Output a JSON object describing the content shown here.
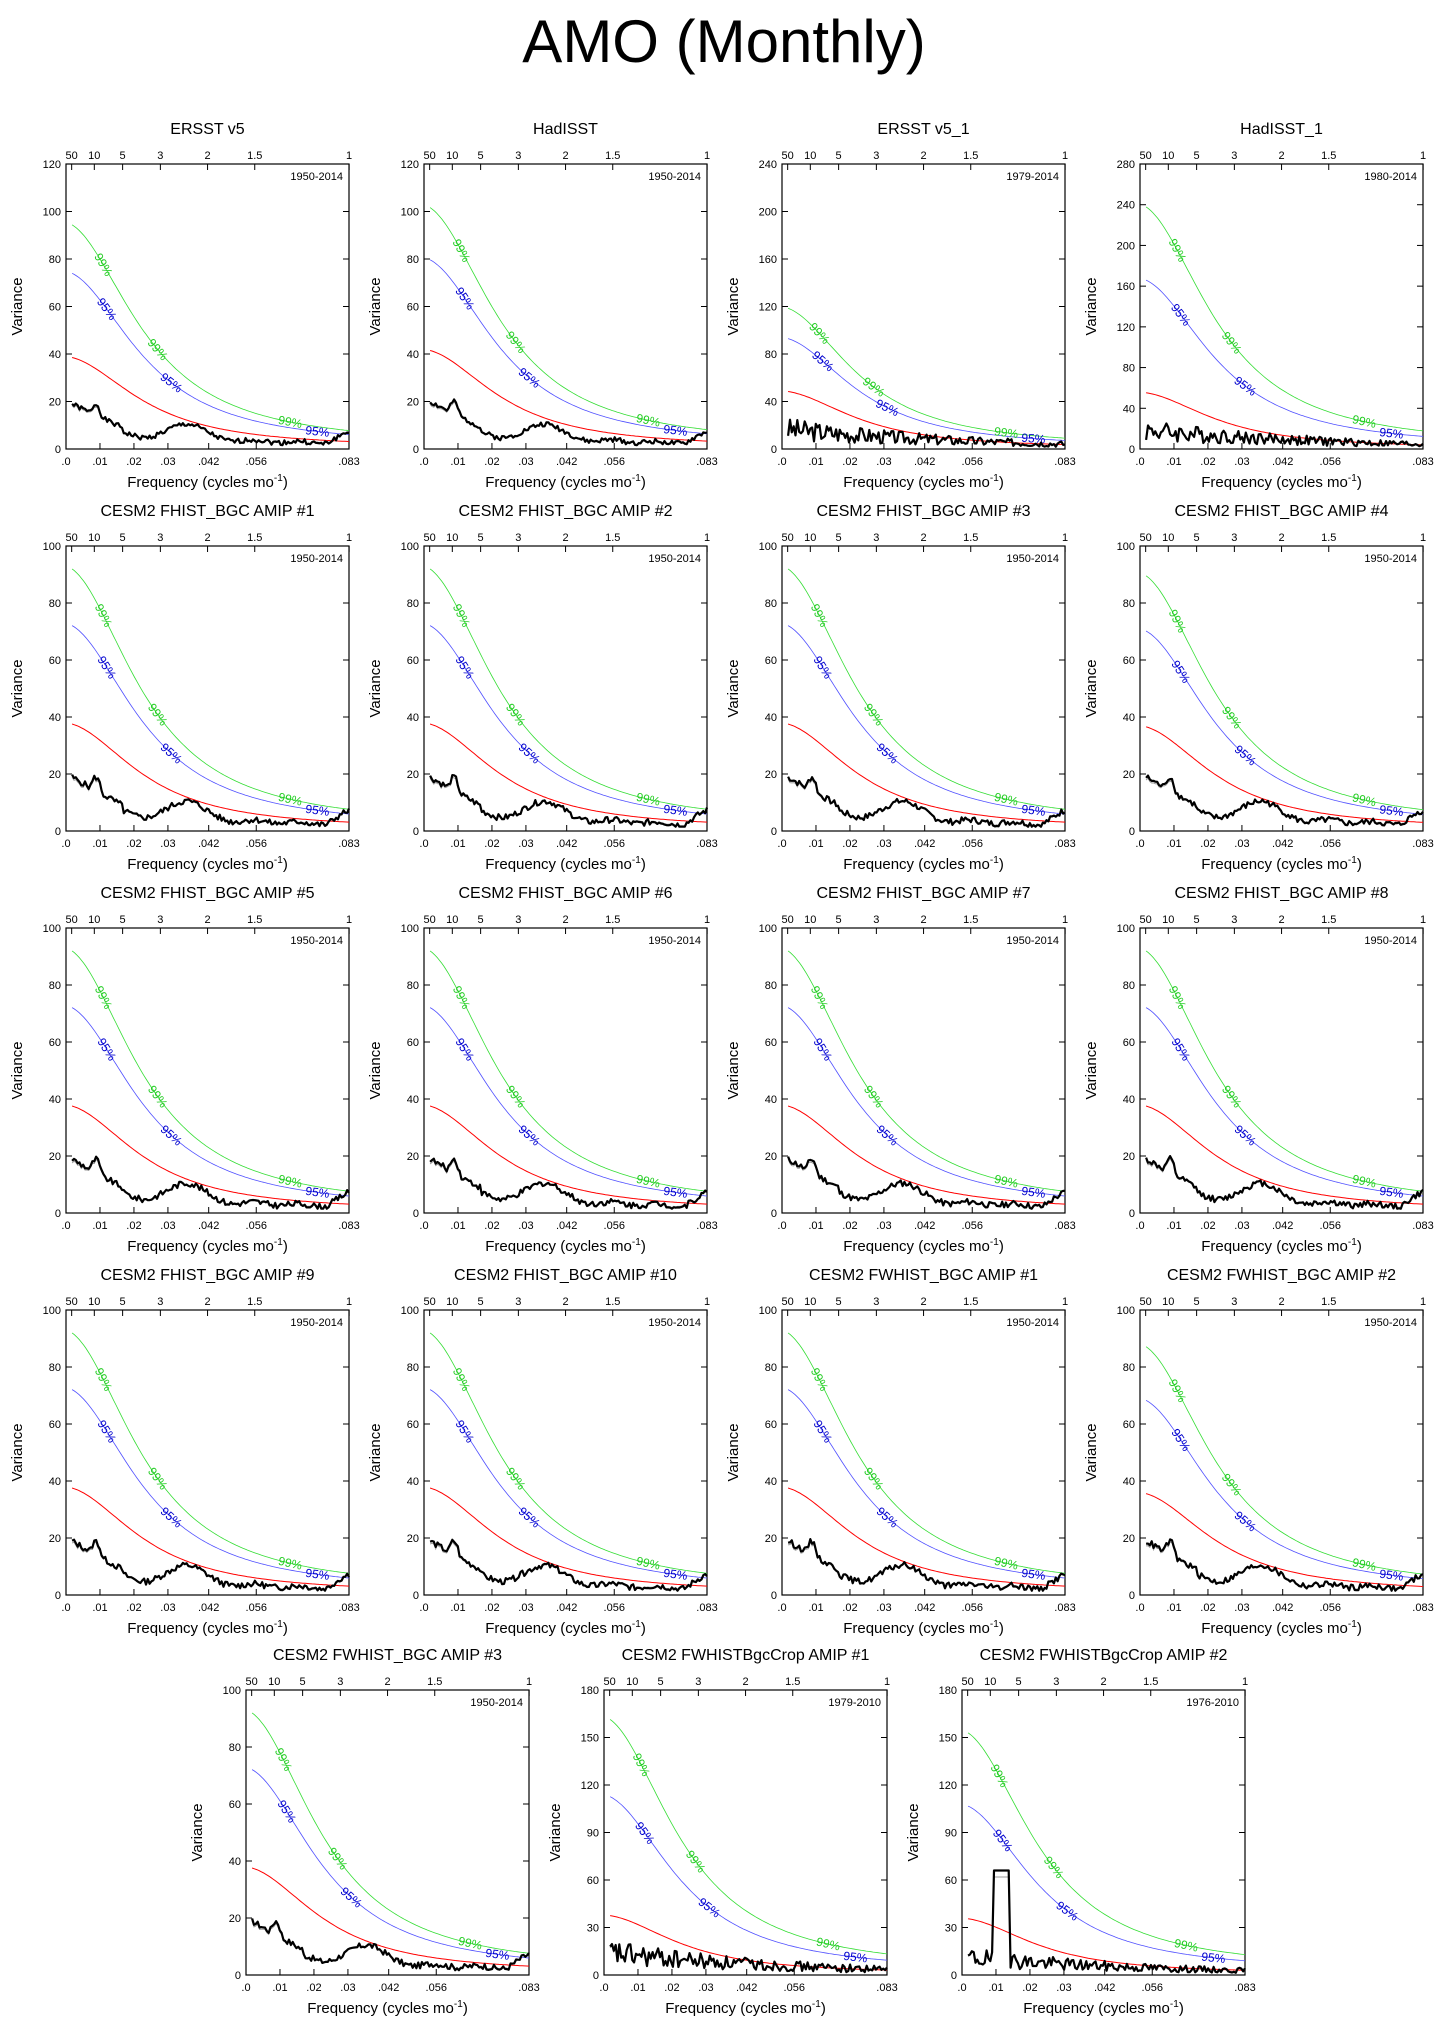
{
  "page_title": "AMO (Monthly)",
  "colors": {
    "spectrum": "#000000",
    "spectrum_thin": "#999999",
    "red_noise": "#ff0000",
    "conf95": "#5050ff",
    "conf95_label": "#0000cc",
    "conf99": "#33dd33",
    "conf99_label": "#22cc22",
    "axis": "#000000"
  },
  "chart_data": [
    {
      "type": "line",
      "title": "ERSST v5",
      "years": "1950-2014",
      "ylim": [
        0,
        120
      ],
      "yticks": [
        "0",
        "20",
        "40",
        "60",
        "80",
        "100",
        "120"
      ],
      "xlabel": "Frequency (cycles mo",
      "xlabel_sup": "-1",
      "ylabel": "Variance",
      "top_ticks": [
        "50",
        "10",
        "5",
        "3",
        "2",
        "1.5",
        "1"
      ],
      "xticks": [
        ".0",
        ".01",
        ".02",
        ".03",
        ".042",
        ".056",
        ".083"
      ],
      "conf_labels": {
        "c99": "99%",
        "c95": "95%"
      },
      "red0": 38,
      "peak": 106,
      "base": 16,
      "curve": "a",
      "seed": 1
    },
    {
      "type": "line",
      "title": "HadISST",
      "years": "1950-2014",
      "ylim": [
        0,
        120
      ],
      "yticks": [
        "0",
        "20",
        "40",
        "60",
        "80",
        "100",
        "120"
      ],
      "xlabel": "Frequency (cycles mo",
      "xlabel_sup": "-1",
      "ylabel": "Variance",
      "top_ticks": [
        "50",
        "10",
        "5",
        "3",
        "2",
        "1.5",
        "1"
      ],
      "xticks": [
        ".0",
        ".01",
        ".02",
        ".03",
        ".042",
        ".056",
        ".083"
      ],
      "conf_labels": {
        "c99": "99%",
        "c95": "95%"
      },
      "red0": 41,
      "peak": 117,
      "base": 17,
      "curve": "a",
      "seed": 2
    },
    {
      "type": "line",
      "title": "ERSST v5_1",
      "years": "1979-2014",
      "ylim": [
        0,
        240
      ],
      "yticks": [
        "0",
        "40",
        "80",
        "120",
        "160",
        "200",
        "240"
      ],
      "xlabel": "Frequency (cycles mo",
      "xlabel_sup": "-1",
      "ylabel": "Variance",
      "top_ticks": [
        "50",
        "10",
        "5",
        "3",
        "2",
        "1.5",
        "1"
      ],
      "xticks": [
        ".0",
        ".01",
        ".02",
        ".03",
        ".042",
        ".056",
        ".083"
      ],
      "conf_labels": {
        "c99": "99%",
        "c95": "95%"
      },
      "red0": 48,
      "peak": 107,
      "base": 18,
      "curve": "b",
      "seed": 3
    },
    {
      "type": "line",
      "title": "HadISST_1",
      "years": "1980-2014",
      "ylim": [
        0,
        280
      ],
      "yticks": [
        "0",
        "40",
        "80",
        "120",
        "160",
        "200",
        "240",
        "280"
      ],
      "xlabel": "Frequency (cycles mo",
      "xlabel_sup": "-1",
      "ylabel": "Variance",
      "top_ticks": [
        "50",
        "10",
        "5",
        "3",
        "2",
        "1.5",
        "1"
      ],
      "xticks": [
        ".0",
        ".01",
        ".02",
        ".03",
        ".042",
        ".056",
        ".083"
      ],
      "conf_labels": {
        "c99": "99%",
        "c95": "95%"
      },
      "red0": 55,
      "peak": 265,
      "base": 20,
      "curve": "b",
      "seed": 4
    },
    {
      "type": "line",
      "title": "CESM2 FHIST_BGC AMIP #1",
      "years": "1950-2014",
      "ylim": [
        0,
        100
      ],
      "yticks": [
        "0",
        "20",
        "40",
        "60",
        "80",
        "100"
      ],
      "xlabel": "Frequency (cycles mo",
      "xlabel_sup": "-1",
      "ylabel": "Variance",
      "top_ticks": [
        "50",
        "10",
        "5",
        "3",
        "2",
        "1.5",
        "1"
      ],
      "xticks": [
        ".0",
        ".01",
        ".02",
        ".03",
        ".042",
        ".056",
        ".083"
      ],
      "conf_labels": {
        "c99": "99%",
        "c95": "95%"
      },
      "red0": 37,
      "peak": 97,
      "base": 16,
      "curve": "a",
      "seed": 5
    },
    {
      "type": "line",
      "title": "CESM2 FHIST_BGC AMIP #2",
      "years": "1950-2014",
      "ylim": [
        0,
        100
      ],
      "yticks": [
        "0",
        "20",
        "40",
        "60",
        "80",
        "100"
      ],
      "xlabel": "Frequency (cycles mo",
      "xlabel_sup": "-1",
      "ylabel": "Variance",
      "top_ticks": [
        "50",
        "10",
        "5",
        "3",
        "2",
        "1.5",
        "1"
      ],
      "xticks": [
        ".0",
        ".01",
        ".02",
        ".03",
        ".042",
        ".056",
        ".083"
      ],
      "conf_labels": {
        "c99": "99%",
        "c95": "95%"
      },
      "red0": 37,
      "peak": 97,
      "base": 16,
      "curve": "a",
      "seed": 6
    },
    {
      "type": "line",
      "title": "CESM2 FHIST_BGC AMIP #3",
      "years": "1950-2014",
      "ylim": [
        0,
        100
      ],
      "yticks": [
        "0",
        "20",
        "40",
        "60",
        "80",
        "100"
      ],
      "xlabel": "Frequency (cycles mo",
      "xlabel_sup": "-1",
      "ylabel": "Variance",
      "top_ticks": [
        "50",
        "10",
        "5",
        "3",
        "2",
        "1.5",
        "1"
      ],
      "xticks": [
        ".0",
        ".01",
        ".02",
        ".03",
        ".042",
        ".056",
        ".083"
      ],
      "conf_labels": {
        "c99": "99%",
        "c95": "95%"
      },
      "red0": 37,
      "peak": 97,
      "base": 16,
      "curve": "a",
      "seed": 7
    },
    {
      "type": "line",
      "title": "CESM2 FHIST_BGC AMIP #4",
      "years": "1950-2014",
      "ylim": [
        0,
        100
      ],
      "yticks": [
        "0",
        "20",
        "40",
        "60",
        "80",
        "100"
      ],
      "xlabel": "Frequency (cycles mo",
      "xlabel_sup": "-1",
      "ylabel": "Variance",
      "top_ticks": [
        "50",
        "10",
        "5",
        "3",
        "2",
        "1.5",
        "1"
      ],
      "xticks": [
        ".0",
        ".01",
        ".02",
        ".03",
        ".042",
        ".056",
        ".083"
      ],
      "conf_labels": {
        "c99": "99%",
        "c95": "95%"
      },
      "red0": 36,
      "peak": 98,
      "base": 16,
      "curve": "a",
      "seed": 8
    },
    {
      "type": "line",
      "title": "CESM2 FHIST_BGC AMIP #5",
      "years": "1950-2014",
      "ylim": [
        0,
        100
      ],
      "yticks": [
        "0",
        "20",
        "40",
        "60",
        "80",
        "100"
      ],
      "xlabel": "Frequency (cycles mo",
      "xlabel_sup": "-1",
      "ylabel": "Variance",
      "top_ticks": [
        "50",
        "10",
        "5",
        "3",
        "2",
        "1.5",
        "1"
      ],
      "xticks": [
        ".0",
        ".01",
        ".02",
        ".03",
        ".042",
        ".056",
        ".083"
      ],
      "conf_labels": {
        "c99": "99%",
        "c95": "95%"
      },
      "red0": 37,
      "peak": 97,
      "base": 16,
      "curve": "a",
      "seed": 9
    },
    {
      "type": "line",
      "title": "CESM2 FHIST_BGC AMIP #6",
      "years": "1950-2014",
      "ylim": [
        0,
        100
      ],
      "yticks": [
        "0",
        "20",
        "40",
        "60",
        "80",
        "100"
      ],
      "xlabel": "Frequency (cycles mo",
      "xlabel_sup": "-1",
      "ylabel": "Variance",
      "top_ticks": [
        "50",
        "10",
        "5",
        "3",
        "2",
        "1.5",
        "1"
      ],
      "xticks": [
        ".0",
        ".01",
        ".02",
        ".03",
        ".042",
        ".056",
        ".083"
      ],
      "conf_labels": {
        "c99": "99%",
        "c95": "95%"
      },
      "red0": 37,
      "peak": 97,
      "base": 16,
      "curve": "a",
      "seed": 10
    },
    {
      "type": "line",
      "title": "CESM2 FHIST_BGC AMIP #7",
      "years": "1950-2014",
      "ylim": [
        0,
        100
      ],
      "yticks": [
        "0",
        "20",
        "40",
        "60",
        "80",
        "100"
      ],
      "xlabel": "Frequency (cycles mo",
      "xlabel_sup": "-1",
      "ylabel": "Variance",
      "top_ticks": [
        "50",
        "10",
        "5",
        "3",
        "2",
        "1.5",
        "1"
      ],
      "xticks": [
        ".0",
        ".01",
        ".02",
        ".03",
        ".042",
        ".056",
        ".083"
      ],
      "conf_labels": {
        "c99": "99%",
        "c95": "95%"
      },
      "red0": 37,
      "peak": 98,
      "base": 16,
      "curve": "a",
      "seed": 11
    },
    {
      "type": "line",
      "title": "CESM2 FHIST_BGC AMIP #8",
      "years": "1950-2014",
      "ylim": [
        0,
        100
      ],
      "yticks": [
        "0",
        "20",
        "40",
        "60",
        "80",
        "100"
      ],
      "xlabel": "Frequency (cycles mo",
      "xlabel_sup": "-1",
      "ylabel": "Variance",
      "top_ticks": [
        "50",
        "10",
        "5",
        "3",
        "2",
        "1.5",
        "1"
      ],
      "xticks": [
        ".0",
        ".01",
        ".02",
        ".03",
        ".042",
        ".056",
        ".083"
      ],
      "conf_labels": {
        "c99": "99%",
        "c95": "95%"
      },
      "red0": 37,
      "peak": 98,
      "base": 16,
      "curve": "a",
      "seed": 12
    },
    {
      "type": "line",
      "title": "CESM2 FHIST_BGC AMIP #9",
      "years": "1950-2014",
      "ylim": [
        0,
        100
      ],
      "yticks": [
        "0",
        "20",
        "40",
        "60",
        "80",
        "100"
      ],
      "xlabel": "Frequency (cycles mo",
      "xlabel_sup": "-1",
      "ylabel": "Variance",
      "top_ticks": [
        "50",
        "10",
        "5",
        "3",
        "2",
        "1.5",
        "1"
      ],
      "xticks": [
        ".0",
        ".01",
        ".02",
        ".03",
        ".042",
        ".056",
        ".083"
      ],
      "conf_labels": {
        "c99": "99%",
        "c95": "95%"
      },
      "red0": 37,
      "peak": 98,
      "base": 16,
      "curve": "a",
      "seed": 13
    },
    {
      "type": "line",
      "title": "CESM2 FHIST_BGC AMIP #10",
      "years": "1950-2014",
      "ylim": [
        0,
        100
      ],
      "yticks": [
        "0",
        "20",
        "40",
        "60",
        "80",
        "100"
      ],
      "xlabel": "Frequency (cycles mo",
      "xlabel_sup": "-1",
      "ylabel": "Variance",
      "top_ticks": [
        "50",
        "10",
        "5",
        "3",
        "2",
        "1.5",
        "1"
      ],
      "xticks": [
        ".0",
        ".01",
        ".02",
        ".03",
        ".042",
        ".056",
        ".083"
      ],
      "conf_labels": {
        "c99": "99%",
        "c95": "95%"
      },
      "red0": 37,
      "peak": 97,
      "base": 16,
      "curve": "a",
      "seed": 14
    },
    {
      "type": "line",
      "title": "CESM2 FWHIST_BGC AMIP #1",
      "years": "1950-2014",
      "ylim": [
        0,
        100
      ],
      "yticks": [
        "0",
        "20",
        "40",
        "60",
        "80",
        "100"
      ],
      "xlabel": "Frequency (cycles mo",
      "xlabel_sup": "-1",
      "ylabel": "Variance",
      "top_ticks": [
        "50",
        "10",
        "5",
        "3",
        "2",
        "1.5",
        "1"
      ],
      "xticks": [
        ".0",
        ".01",
        ".02",
        ".03",
        ".042",
        ".056",
        ".083"
      ],
      "conf_labels": {
        "c99": "99%",
        "c95": "95%"
      },
      "red0": 37,
      "peak": 98,
      "base": 16,
      "curve": "a",
      "seed": 15
    },
    {
      "type": "line",
      "title": "CESM2 FWHIST_BGC AMIP #2",
      "years": "1950-2014",
      "ylim": [
        0,
        100
      ],
      "yticks": [
        "0",
        "20",
        "40",
        "60",
        "80",
        "100"
      ],
      "xlabel": "Frequency (cycles mo",
      "xlabel_sup": "-1",
      "ylabel": "Variance",
      "top_ticks": [
        "50",
        "10",
        "5",
        "3",
        "2",
        "1.5",
        "1"
      ],
      "xticks": [
        ".0",
        ".01",
        ".02",
        ".03",
        ".042",
        ".056",
        ".083"
      ],
      "conf_labels": {
        "c99": "99%",
        "c95": "95%"
      },
      "red0": 35,
      "peak": 98,
      "base": 16,
      "curve": "a",
      "seed": 16
    },
    {
      "type": "line",
      "title": "CESM2 FWHIST_BGC AMIP #3",
      "years": "1950-2014",
      "ylim": [
        0,
        100
      ],
      "yticks": [
        "0",
        "20",
        "40",
        "60",
        "80",
        "100"
      ],
      "xlabel": "Frequency (cycles mo",
      "xlabel_sup": "-1",
      "ylabel": "Variance",
      "top_ticks": [
        "50",
        "10",
        "5",
        "3",
        "2",
        "1.5",
        "1"
      ],
      "xticks": [
        ".0",
        ".01",
        ".02",
        ".03",
        ".042",
        ".056",
        ".083"
      ],
      "conf_labels": {
        "c99": "99%",
        "c95": "95%"
      },
      "red0": 37,
      "peak": 97,
      "base": 16,
      "curve": "a",
      "seed": 17
    },
    {
      "type": "line",
      "title": "CESM2 FWHISTBgcCrop AMIP #1",
      "years": "1979-2010",
      "ylim": [
        0,
        180
      ],
      "yticks": [
        "0",
        "30",
        "60",
        "90",
        "120",
        "150",
        "180"
      ],
      "xlabel": "Frequency (cycles mo",
      "xlabel_sup": "-1",
      "ylabel": "Variance",
      "top_ticks": [
        "50",
        "10",
        "5",
        "3",
        "2",
        "1.5",
        "1"
      ],
      "xticks": [
        ".0",
        ".01",
        ".02",
        ".03",
        ".042",
        ".056",
        ".083"
      ],
      "conf_labels": {
        "c99": "99%",
        "c95": "95%"
      },
      "red0": 37,
      "peak": 160,
      "base": 15,
      "curve": "b",
      "seed": 18
    },
    {
      "type": "line",
      "title": "CESM2 FWHISTBgcCrop AMIP #2",
      "years": "1976-2010",
      "ylim": [
        0,
        180
      ],
      "yticks": [
        "0",
        "30",
        "60",
        "90",
        "120",
        "150",
        "180"
      ],
      "xlabel": "Frequency (cycles mo",
      "xlabel_sup": "-1",
      "ylabel": "Variance",
      "top_ticks": [
        "50",
        "10",
        "5",
        "3",
        "2",
        "1.5",
        "1"
      ],
      "xticks": [
        ".0",
        ".01",
        ".02",
        ".03",
        ".042",
        ".056",
        ".083"
      ],
      "conf_labels": {
        "c99": "99%",
        "c95": "95%"
      },
      "red0": 35,
      "peak": 158,
      "base": 12,
      "curve": "c",
      "seed": 19
    }
  ]
}
